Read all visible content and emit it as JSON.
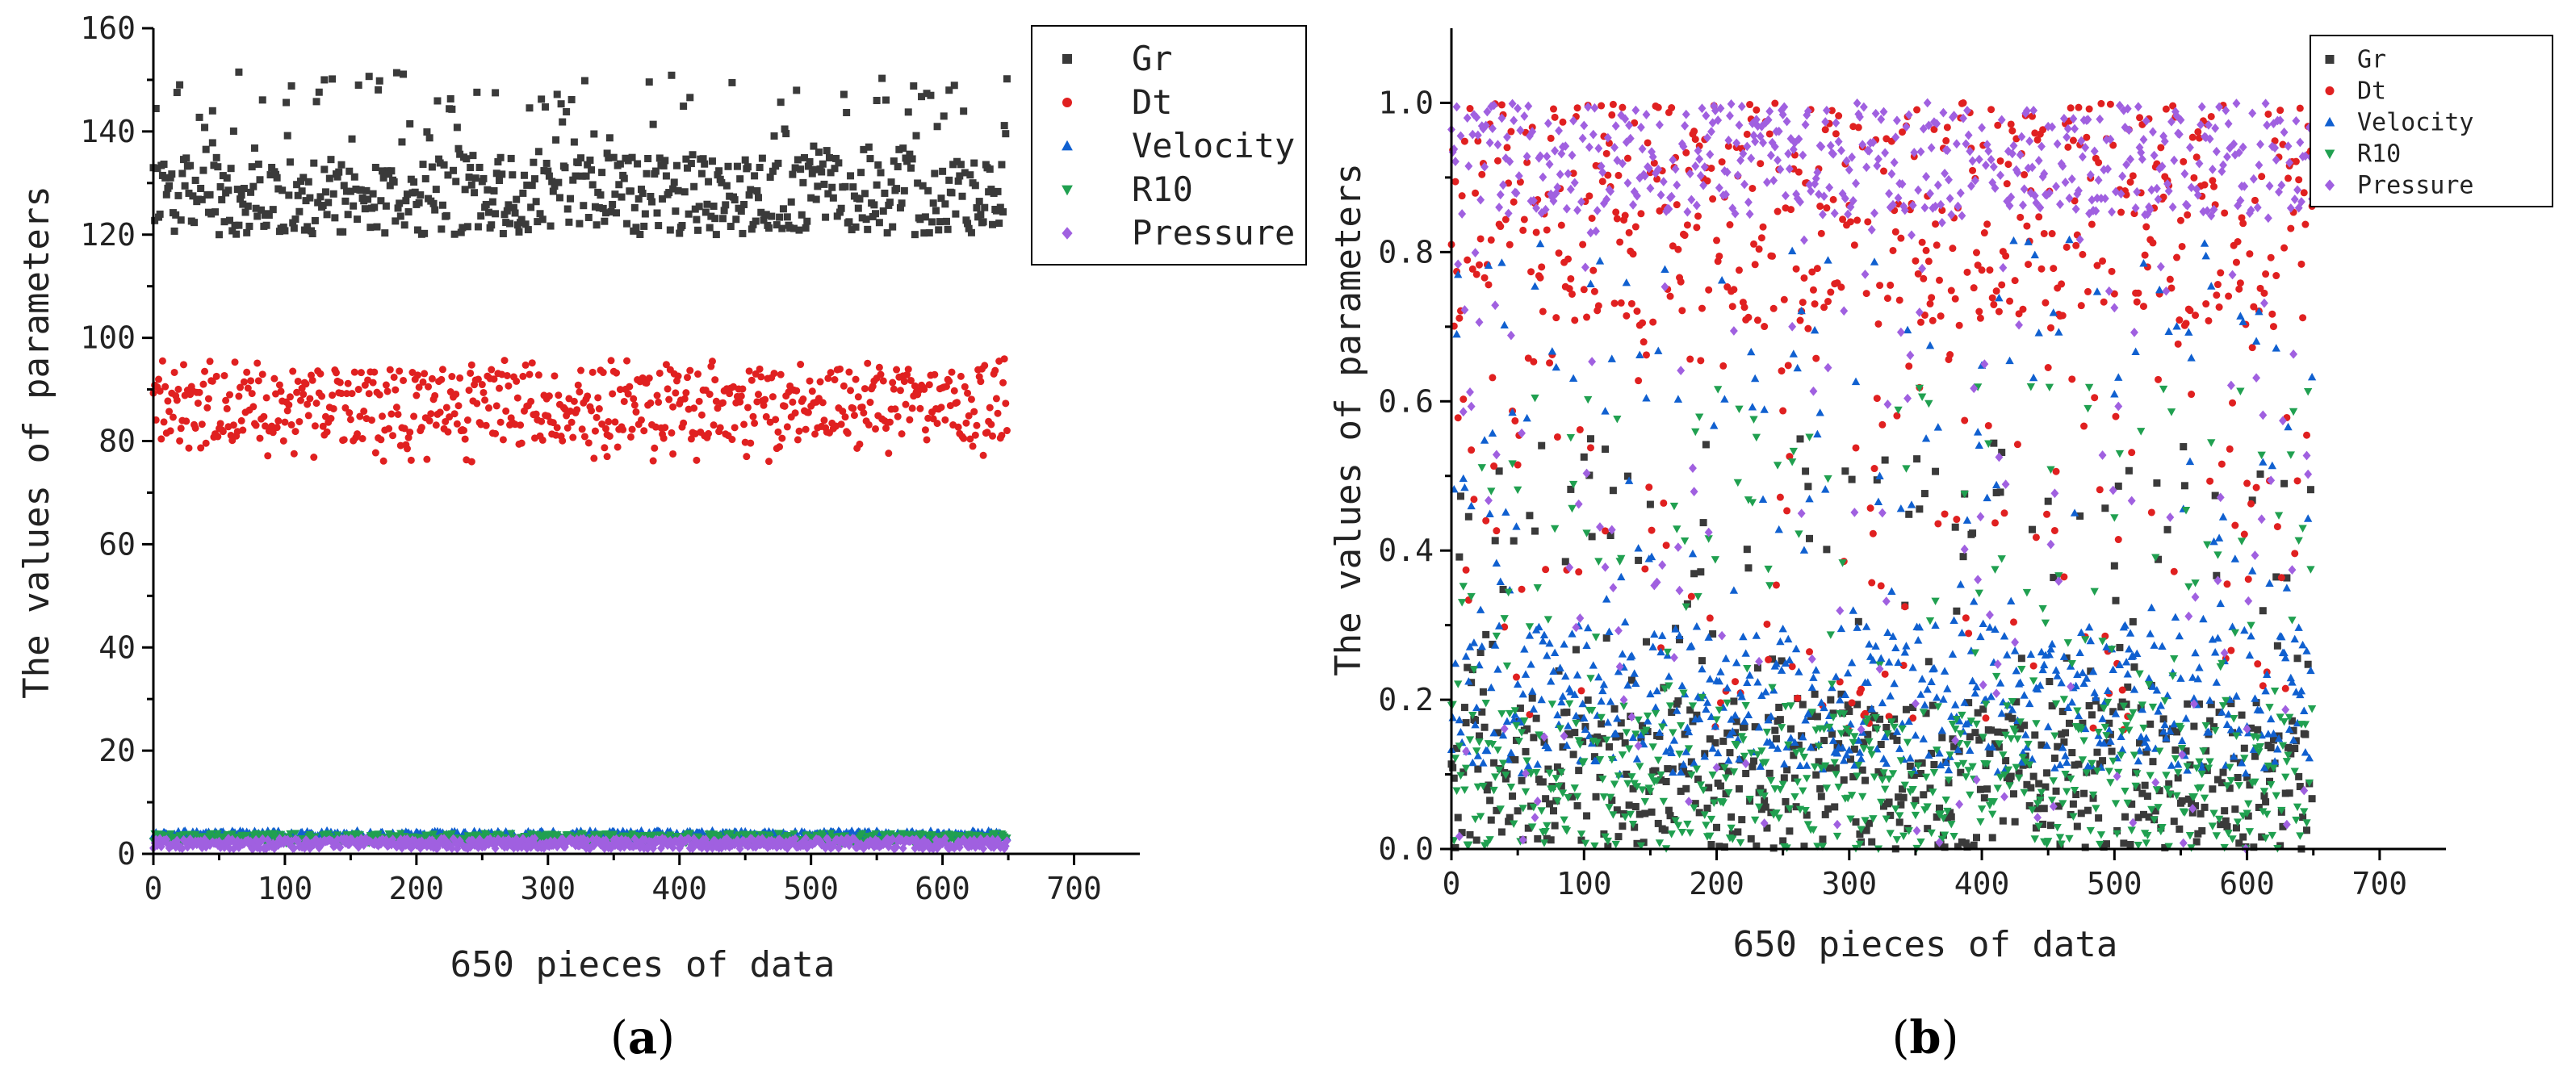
{
  "chart_data": [
    {
      "type": "scatter",
      "panel_label": "a",
      "xlabel": "650 pieces of data",
      "ylabel": "The values of parameters",
      "xlim": [
        0,
        750
      ],
      "ylim": [
        0,
        160
      ],
      "xticks": [
        0,
        100,
        200,
        300,
        400,
        500,
        600,
        700
      ],
      "yticks": [
        0,
        20,
        40,
        60,
        80,
        100,
        120,
        140,
        160
      ],
      "n_points": 650,
      "grid": false,
      "legend_position": "top-right",
      "series": [
        {
          "name": "Gr",
          "marker": "square",
          "color": "#3a3a3a",
          "value_range": [
            120,
            152
          ],
          "dense_range": [
            120,
            135
          ],
          "outliers": [
            [
              65,
              151.5
            ],
            [
              130,
              150
            ],
            [
              605,
              148
            ],
            [
              260,
              147.5
            ],
            [
              550,
              146
            ],
            [
              45,
              144
            ]
          ]
        },
        {
          "name": "Dt",
          "marker": "circle",
          "color": "#e02020",
          "value_range": [
            76,
            96
          ],
          "dense_range": [
            80,
            94
          ],
          "outliers": [
            [
              242,
              76
            ],
            [
              345,
              77
            ],
            [
              395,
              77.5
            ]
          ]
        },
        {
          "name": "Velocity",
          "marker": "triangle-up",
          "color": "#1060d0",
          "value_range": [
            2.5,
            4.5
          ]
        },
        {
          "name": "R10",
          "marker": "triangle-down",
          "color": "#20a050",
          "value_range": [
            2,
            4
          ]
        },
        {
          "name": "Pressure",
          "marker": "diamond",
          "color": "#a060e0",
          "value_range": [
            1,
            3
          ]
        }
      ]
    },
    {
      "type": "scatter",
      "panel_label": "b",
      "xlabel": "650 pieces of data",
      "ylabel": "The values of parameters",
      "xlim": [
        0,
        750
      ],
      "ylim": [
        0,
        1.1
      ],
      "xticks": [
        0,
        100,
        200,
        300,
        400,
        500,
        600,
        700
      ],
      "yticks": [
        0.0,
        0.2,
        0.4,
        0.6,
        0.8,
        1.0
      ],
      "ytick_labels": [
        "0.0",
        "0.2",
        "0.4",
        "0.6",
        "0.8",
        "1.0"
      ],
      "n_points": 650,
      "grid": false,
      "legend_position": "top-right",
      "series": [
        {
          "name": "Gr",
          "marker": "square",
          "color": "#3a3a3a",
          "value_range": [
            0,
            0.55
          ],
          "dense_range": [
            0,
            0.2
          ]
        },
        {
          "name": "Dt",
          "marker": "circle",
          "color": "#e02020",
          "value_range": [
            0.15,
            1.0
          ],
          "dense_range": [
            0.7,
            1.0
          ]
        },
        {
          "name": "Velocity",
          "marker": "triangle-up",
          "color": "#1060d0",
          "value_range": [
            0.1,
            0.82
          ],
          "dense_range": [
            0.1,
            0.3
          ]
        },
        {
          "name": "R10",
          "marker": "triangle-down",
          "color": "#20a050",
          "value_range": [
            0,
            0.62
          ],
          "dense_range": [
            0,
            0.2
          ]
        },
        {
          "name": "Pressure",
          "marker": "diamond",
          "color": "#a060e0",
          "value_range": [
            0,
            1.0
          ],
          "dense_range": [
            0.85,
            1.0
          ]
        }
      ]
    }
  ]
}
